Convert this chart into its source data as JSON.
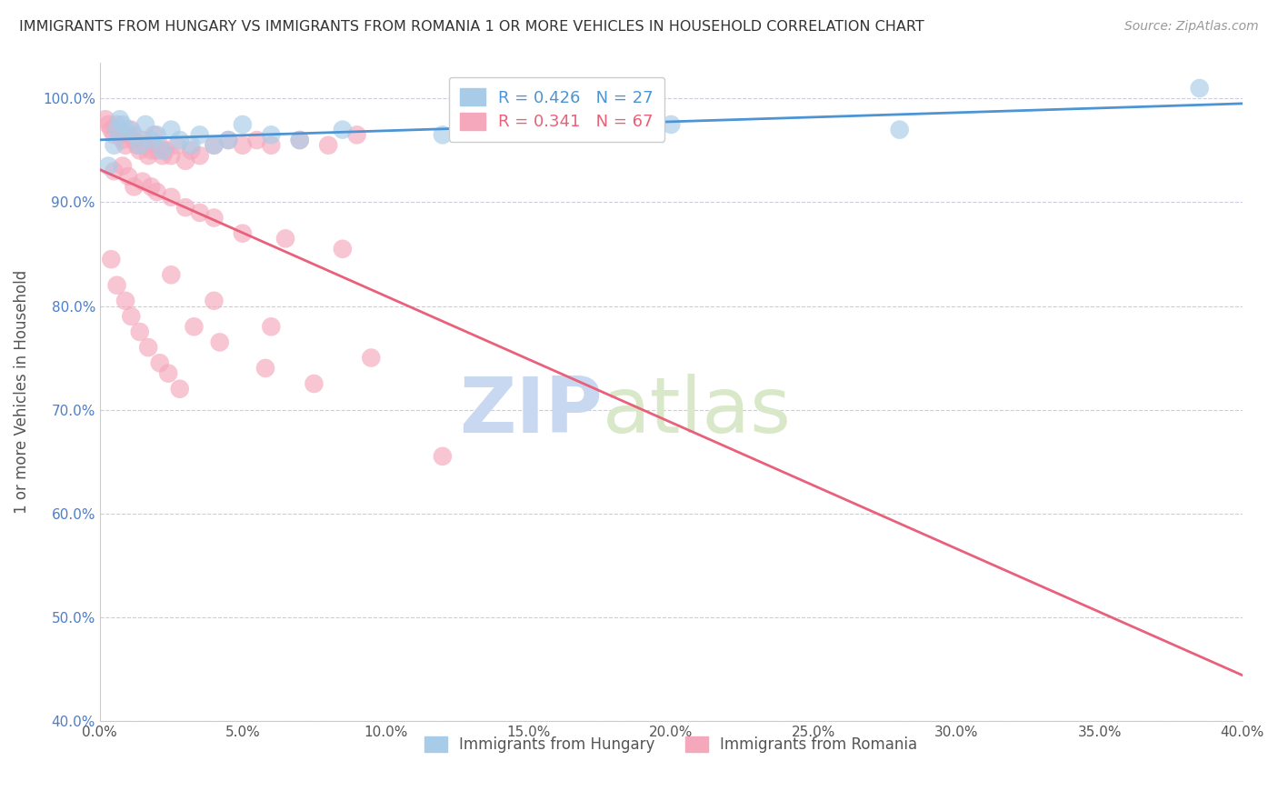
{
  "title": "IMMIGRANTS FROM HUNGARY VS IMMIGRANTS FROM ROMANIA 1 OR MORE VEHICLES IN HOUSEHOLD CORRELATION CHART",
  "source": "Source: ZipAtlas.com",
  "xlabel": "",
  "ylabel": "1 or more Vehicles in Household",
  "xlim": [
    0.0,
    40.0
  ],
  "ylim": [
    40.0,
    103.5
  ],
  "xticks": [
    0.0,
    5.0,
    10.0,
    15.0,
    20.0,
    25.0,
    30.0,
    35.0,
    40.0
  ],
  "yticks": [
    40.0,
    50.0,
    60.0,
    70.0,
    80.0,
    90.0,
    100.0
  ],
  "ytick_labels": [
    "40.0%",
    "50.0%",
    "60.0%",
    "70.0%",
    "80.0%",
    "90.0%",
    "100.0%"
  ],
  "xtick_labels": [
    "0.0%",
    "5.0%",
    "10.0%",
    "15.0%",
    "20.0%",
    "25.0%",
    "30.0%",
    "35.0%",
    "40.0%"
  ],
  "legend1_R": "0.426",
  "legend1_N": "27",
  "legend2_R": "0.341",
  "legend2_N": "67",
  "hungary_color": "#a8cce8",
  "romania_color": "#f5a8bc",
  "hungary_line_color": "#4d94d4",
  "romania_line_color": "#e8607a",
  "grid_color": "#ccccdd",
  "watermark_color": "#dce8f5",
  "background_color": "#ffffff",
  "hungary_x": [
    0.3,
    0.5,
    0.6,
    0.7,
    0.8,
    1.0,
    1.2,
    1.4,
    1.6,
    1.8,
    2.0,
    2.2,
    2.5,
    2.8,
    3.2,
    3.5,
    4.0,
    4.5,
    5.0,
    6.0,
    7.0,
    8.5,
    12.0,
    16.0,
    20.0,
    28.0,
    38.5
  ],
  "hungary_y": [
    93.5,
    95.5,
    97.0,
    98.0,
    97.5,
    97.0,
    96.5,
    95.5,
    97.5,
    96.0,
    96.5,
    95.0,
    97.0,
    96.0,
    95.5,
    96.5,
    95.5,
    96.0,
    97.5,
    96.5,
    96.0,
    97.0,
    96.5,
    97.0,
    97.5,
    97.0,
    101.0
  ],
  "romania_x": [
    0.2,
    0.3,
    0.4,
    0.5,
    0.6,
    0.7,
    0.8,
    0.9,
    1.0,
    1.1,
    1.2,
    1.3,
    1.4,
    1.5,
    1.6,
    1.7,
    1.8,
    1.9,
    2.0,
    2.1,
    2.2,
    2.3,
    2.5,
    2.7,
    3.0,
    3.2,
    3.5,
    4.0,
    4.5,
    5.0,
    5.5,
    6.0,
    7.0,
    8.0,
    9.0,
    0.5,
    0.8,
    1.0,
    1.2,
    1.5,
    1.8,
    2.0,
    2.5,
    3.0,
    3.5,
    4.0,
    5.0,
    6.5,
    8.5,
    0.4,
    0.6,
    0.9,
    1.1,
    1.4,
    1.7,
    2.1,
    2.4,
    2.8,
    3.3,
    4.2,
    5.8,
    7.5,
    2.5,
    4.0,
    6.0,
    9.5,
    12.0
  ],
  "romania_y": [
    98.0,
    97.5,
    97.0,
    96.5,
    97.5,
    96.5,
    96.0,
    95.5,
    96.5,
    97.0,
    96.0,
    95.5,
    95.0,
    96.0,
    95.5,
    94.5,
    95.0,
    96.5,
    95.0,
    95.5,
    94.5,
    95.0,
    94.5,
    95.5,
    94.0,
    95.0,
    94.5,
    95.5,
    96.0,
    95.5,
    96.0,
    95.5,
    96.0,
    95.5,
    96.5,
    93.0,
    93.5,
    92.5,
    91.5,
    92.0,
    91.5,
    91.0,
    90.5,
    89.5,
    89.0,
    88.5,
    87.0,
    86.5,
    85.5,
    84.5,
    82.0,
    80.5,
    79.0,
    77.5,
    76.0,
    74.5,
    73.5,
    72.0,
    78.0,
    76.5,
    74.0,
    72.5,
    83.0,
    80.5,
    78.0,
    75.0,
    65.5
  ]
}
